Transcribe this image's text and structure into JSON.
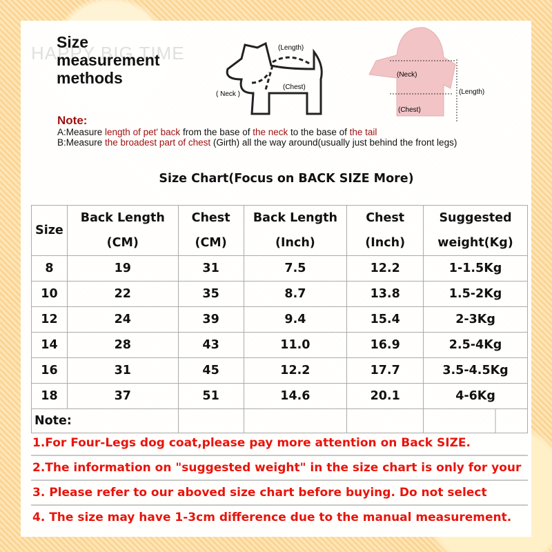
{
  "header": {
    "title_lines": [
      "Size",
      "measurement",
      "methods"
    ],
    "watermark": "HAPPY BIG TIME"
  },
  "diagram": {
    "dog_labels": {
      "length": "(Length)",
      "neck": "( Neck )",
      "chest": "(Chest)"
    },
    "coat_labels": {
      "neck": "(Neck)",
      "length": "(Length)",
      "chest": "(Chest)"
    },
    "coat_color": "#f2c4c6"
  },
  "measure_note": {
    "heading": "Note:",
    "a": {
      "prefix": "A:Measure ",
      "h1": "length of pet' back",
      "t1": " from the base of ",
      "h2": "the neck",
      "t2": " to the base of ",
      "h3": "the tail"
    },
    "b": {
      "prefix": "B:Measure ",
      "h1": "the broadest part of chest",
      "t1": " (Girth) all the way around(usually just behind the front legs)"
    }
  },
  "chart_title": "Size Chart(Focus on BACK SIZE More)",
  "table": {
    "headers": [
      [
        "Size"
      ],
      [
        "Back Length",
        "(CM)"
      ],
      [
        "Chest",
        "(CM)"
      ],
      [
        "Back Length",
        "(Inch)"
      ],
      [
        "Chest",
        "(Inch)"
      ],
      [
        "Suggested",
        "weight(Kg)"
      ]
    ],
    "rows": [
      [
        "8",
        "19",
        "31",
        "7.5",
        "12.2",
        "1-1.5Kg"
      ],
      [
        "10",
        "22",
        "35",
        "8.7",
        "13.8",
        "1.5-2Kg"
      ],
      [
        "12",
        "24",
        "39",
        "9.4",
        "15.4",
        "2-3Kg"
      ],
      [
        "14",
        "28",
        "43",
        "11.0",
        "16.9",
        "2.5-4Kg"
      ],
      [
        "16",
        "31",
        "45",
        "12.2",
        "17.7",
        "3.5-4.5Kg"
      ],
      [
        "18",
        "37",
        "51",
        "14.6",
        "20.1",
        "4-6Kg"
      ]
    ],
    "note_label": "Note:"
  },
  "notes": [
    "1.For Four-Legs dog coat,please pay more attention on Back SIZE.",
    "2.The information on \"suggested weight\" in the size chart is only for your",
    "3. Please refer to our aboved size chart before buying. Do not select",
    "4. The size may have 1-3cm difference due to the manual measurement."
  ],
  "colors": {
    "accent_red": "#e8140c",
    "dark_red": "#a01010",
    "background": "#fbd89a"
  }
}
